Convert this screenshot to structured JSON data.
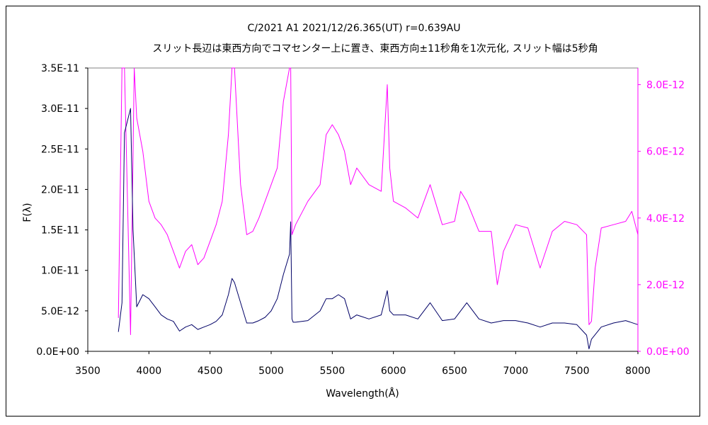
{
  "chart_data": {
    "type": "line",
    "title": "C/2021 A1 2021/12/26.365(UT) r=0.639AU",
    "subtitle": "スリット長辺は東西方向でコマセンター上に置き、東西方向±11秒角を1次元化, スリット幅は5秒角",
    "xlabel": "Wavelength(Å)",
    "ylabel": "F(λ)",
    "xlim": [
      3500,
      8000
    ],
    "ylim_left": [
      0,
      3.5e-11
    ],
    "ylim_right": [
      0,
      8.5e-12
    ],
    "x_ticks": [
      "3500",
      "4000",
      "4500",
      "5000",
      "5500",
      "6000",
      "6500",
      "7000",
      "7500",
      "8000"
    ],
    "y_ticks_left": [
      "0.0E+00",
      "5.0E-12",
      "1.0E-11",
      "1.5E-11",
      "2.0E-11",
      "2.5E-11",
      "3.0E-11",
      "3.5E-11"
    ],
    "y_ticks_right": [
      "0.0E+00",
      "2.0E-12",
      "4.0E-12",
      "6.0E-12",
      "8.0E-12"
    ],
    "grid": false,
    "colors": {
      "left_series": "#000066",
      "right_series": "#ff00ff"
    },
    "series": [
      {
        "axis": "left",
        "x": [
          3750,
          3780,
          3800,
          3850,
          3870,
          3900,
          3950,
          4000,
          4050,
          4100,
          4150,
          4200,
          4250,
          4300,
          4350,
          4400,
          4450,
          4500,
          4550,
          4600,
          4650,
          4680,
          4700,
          4750,
          4800,
          4850,
          4900,
          4950,
          5000,
          5050,
          5100,
          5150,
          5160,
          5170,
          5180,
          5200,
          5300,
          5400,
          5450,
          5500,
          5550,
          5600,
          5650,
          5700,
          5800,
          5900,
          5950,
          5970,
          6000,
          6100,
          6200,
          6300,
          6400,
          6500,
          6550,
          6600,
          6700,
          6800,
          6900,
          7000,
          7100,
          7200,
          7300,
          7400,
          7500,
          7580,
          7600,
          7620,
          7700,
          7800,
          7900,
          8000
        ],
        "values": [
          2.4e-12,
          6e-12,
          2.7e-11,
          3e-11,
          1.5e-11,
          5.5e-12,
          7e-12,
          6.5e-12,
          5.5e-12,
          4.5e-12,
          4e-12,
          3.7e-12,
          2.5e-12,
          3e-12,
          3.3e-12,
          2.7e-12,
          3e-12,
          3.3e-12,
          3.7e-12,
          4.5e-12,
          7e-12,
          9e-12,
          8.5e-12,
          6e-12,
          3.5e-12,
          3.5e-12,
          3.8e-12,
          4.2e-12,
          5e-12,
          6.5e-12,
          9.5e-12,
          1.2e-11,
          1.6e-11,
          4e-12,
          3.6e-12,
          3.6e-12,
          3.8e-12,
          5e-12,
          6.5e-12,
          6.5e-12,
          7e-12,
          6.5e-12,
          4e-12,
          4.5e-12,
          4e-12,
          4.5e-12,
          7.5e-12,
          5e-12,
          4.5e-12,
          4.5e-12,
          4e-12,
          6e-12,
          3.8e-12,
          4e-12,
          5e-12,
          6e-12,
          4e-12,
          3.5e-12,
          3.8e-12,
          3.8e-12,
          3.5e-12,
          3e-12,
          3.5e-12,
          3.5e-12,
          3.3e-12,
          2e-12,
          3e-13,
          1.5e-12,
          3e-12,
          3.5e-12,
          3.8e-12,
          3.3e-12
        ]
      },
      {
        "axis": "right",
        "x": [
          3750,
          3780,
          3800,
          3850,
          3880,
          3900,
          3950,
          4000,
          4050,
          4100,
          4150,
          4200,
          4250,
          4300,
          4350,
          4400,
          4450,
          4500,
          4550,
          4600,
          4650,
          4680,
          4700,
          4750,
          4800,
          4850,
          4900,
          4950,
          5000,
          5050,
          5100,
          5150,
          5160,
          5170,
          5200,
          5300,
          5400,
          5450,
          5500,
          5550,
          5600,
          5650,
          5700,
          5800,
          5900,
          5950,
          5970,
          6000,
          6100,
          6200,
          6300,
          6400,
          6500,
          6550,
          6600,
          6700,
          6800,
          6850,
          6900,
          7000,
          7100,
          7200,
          7300,
          7400,
          7500,
          7580,
          7600,
          7620,
          7650,
          7700,
          7800,
          7900,
          7950,
          8000
        ],
        "values": [
          1e-12,
          8.5e-12,
          8.5e-12,
          5e-13,
          8.5e-12,
          7e-12,
          6e-12,
          4.5e-12,
          4e-12,
          3.8e-12,
          3.5e-12,
          3e-12,
          2.5e-12,
          3e-12,
          3.2e-12,
          2.6e-12,
          2.8e-12,
          3.3e-12,
          3.8e-12,
          4.5e-12,
          6.5e-12,
          8.5e-12,
          8.5e-12,
          5e-12,
          3.5e-12,
          3.6e-12,
          4e-12,
          4.5e-12,
          5e-12,
          5.5e-12,
          7.5e-12,
          8.5e-12,
          8.5e-12,
          3.5e-12,
          3.8e-12,
          4.5e-12,
          5e-12,
          6.5e-12,
          6.8e-12,
          6.5e-12,
          6e-12,
          5e-12,
          5.5e-12,
          5e-12,
          4.8e-12,
          8e-12,
          5.5e-12,
          4.5e-12,
          4.3e-12,
          4e-12,
          5e-12,
          3.8e-12,
          3.9e-12,
          4.8e-12,
          4.5e-12,
          3.6e-12,
          3.6e-12,
          2e-12,
          3e-12,
          3.8e-12,
          3.7e-12,
          2.5e-12,
          3.6e-12,
          3.9e-12,
          3.8e-12,
          3.5e-12,
          8e-13,
          9e-13,
          2.5e-12,
          3.7e-12,
          3.8e-12,
          3.9e-12,
          4.2e-12,
          3.5e-12
        ]
      }
    ]
  }
}
